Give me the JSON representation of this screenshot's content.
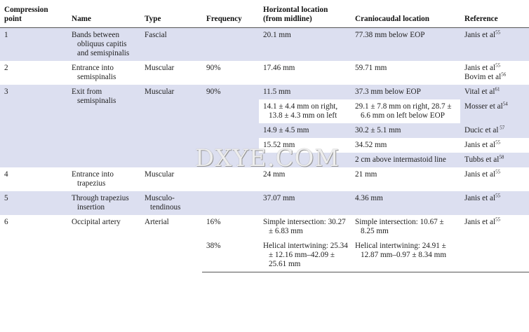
{
  "headers": {
    "point": "Compression point",
    "name": "Name",
    "type": "Type",
    "frequency": "Frequency",
    "horizontal": "Horizontal location (from midline)",
    "craniocaudal": "Craniocaudal location",
    "reference": "Reference"
  },
  "rows": [
    {
      "point": "1",
      "name": "Bands between obliquus capitis and semispinalis",
      "type": "Fascial",
      "frequency": "",
      "horizontal": "20.1 mm",
      "craniocaudal": "77.38 mm below EOP",
      "ref": "Janis et al",
      "ref_sup": "55"
    },
    {
      "point": "2",
      "name": "Entrance into semispinalis",
      "type": "Muscular",
      "frequency": "90%",
      "horizontal": "17.46 mm",
      "craniocaudal": "59.71 mm",
      "ref": "Janis et al",
      "ref_sup": "55",
      "ref2": "Bovim et al",
      "ref2_sup": "56"
    },
    {
      "point": "3",
      "name": "Exit from semispinalis",
      "type": "Muscular",
      "frequency": "90%",
      "horizontal": "11.5 mm",
      "craniocaudal": "37.3 mm below EOP",
      "ref": "Vital et al",
      "ref_sup": "61"
    },
    {
      "horizontal": "14.1 ± 4.4 mm on right, 13.8 ± 4.3 mm on left",
      "craniocaudal": "29.1 ± 7.8 mm on right, 28.7 ± 6.6 mm on left below EOP",
      "ref": "Mosser et al",
      "ref_sup": "54"
    },
    {
      "horizontal": "14.9 ± 4.5 mm",
      "craniocaudal": "30.2 ± 5.1 mm",
      "ref": "Ducic et al",
      "ref_sup": " 57"
    },
    {
      "horizontal": "15.52 mm",
      "craniocaudal": "34.52 mm",
      "ref": "Janis et al",
      "ref_sup": "55"
    },
    {
      "horizontal": "",
      "craniocaudal": "2 cm above intermastoid line",
      "ref": "Tubbs et al",
      "ref_sup": "58"
    },
    {
      "point": "4",
      "name": "Entrance into trapezius",
      "type": "Muscular",
      "frequency": "",
      "horizontal": "24 mm",
      "craniocaudal": "21 mm",
      "ref": "Janis et al",
      "ref_sup": "55"
    },
    {
      "point": "5",
      "name": "Through trapezius insertion",
      "type": "Musculo-tendinous",
      "frequency": "",
      "horizontal": "37.07 mm",
      "craniocaudal": "4.36 mm",
      "ref": "Janis et al",
      "ref_sup": "55"
    },
    {
      "point": "6",
      "name": "Occipital artery",
      "type": "Arterial",
      "frequency": "16%",
      "horizontal": "Simple intersection: 30.27 ± 6.83 mm",
      "craniocaudal": "Simple intersection: 10.67 ± 8.25 mm",
      "ref": "Janis et al",
      "ref_sup": "55"
    },
    {
      "frequency": "38%",
      "horizontal": "Helical intertwining: 25.34 ± 12.16 mm–42.09 ± 25.61 mm",
      "craniocaudal": "Helical intertwining: 24.91 ± 12.87 mm–0.97 ± 8.34 mm"
    }
  ],
  "watermark": "DXYE.COM"
}
